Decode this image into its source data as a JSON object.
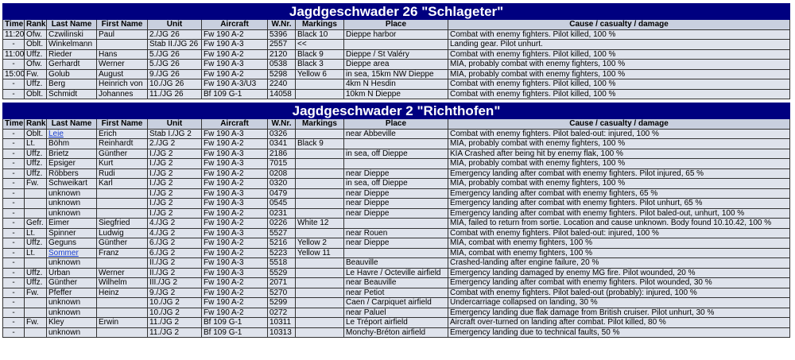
{
  "tables": [
    {
      "title": "Jagdgeschwader 26 \"Schlageter\"",
      "columns": [
        "Time",
        "Rank",
        "Last Name",
        "First Name",
        "Unit",
        "Aircraft",
        "W.Nr.",
        "Markings",
        "Place",
        "Cause / casualty / damage"
      ],
      "rows": [
        [
          "11:20",
          "Ofw.",
          "Czwilinski",
          "Paul",
          "2./JG 26",
          "Fw 190 A-2",
          "5396",
          "Black 10",
          "Dieppe harbor",
          "Combat with enemy fighters. Pilot killed, 100 %"
        ],
        [
          "-",
          "Oblt.",
          "Winkelmann",
          null,
          "Stab II./JG 26",
          "Fw 190 A-3",
          "2557",
          "<<",
          null,
          "Landing gear. Pilot unhurt."
        ],
        [
          "11:00",
          "Uffz.",
          "Rieder",
          "Hans",
          "5./JG 26",
          "Fw 190 A-2",
          "2120",
          "Black 9",
          "Dieppe / St Valéry",
          "Combat with enemy fighters. Pilot killed, 100 %"
        ],
        [
          "-",
          "Ofw.",
          "Gerhardt",
          "Werner",
          "5./JG 26",
          "Fw 190 A-3",
          "0538",
          "Black 3",
          "Dieppe area",
          "MIA, probably combat with enemy fighters, 100 %"
        ],
        [
          "15:00",
          "Fw.",
          "Golub",
          "August",
          "9./JG 26",
          "Fw 190 A-2",
          "5298",
          "Yellow 6",
          "in sea, 15km NW Dieppe",
          "MIA, probably combat with enemy fighters, 100 %"
        ],
        [
          "-",
          "Uffz.",
          "Berg",
          "Heinrich von",
          "10./JG 26",
          "Fw 190 A-3/U3",
          "2240",
          null,
          "4km N Hesdin",
          "Combat with enemy fighters. Pilot killed, 100 %"
        ],
        [
          "-",
          "Oblt.",
          "Schmidt",
          "Johannes",
          "11./JG 26",
          "Bf 109 G-1",
          "14058",
          null,
          "10km N Dieppe",
          "Combat with enemy fighters. Pilot killed, 100 %"
        ]
      ]
    },
    {
      "title": "Jagdgeschwader 2 \"Richthofen\"",
      "columns": [
        "Time",
        "Rank",
        "Last Name",
        "First Name",
        "Unit",
        "Aircraft",
        "W.Nr.",
        "Markings",
        "Place",
        "Cause / casualty / damage"
      ],
      "rows": [
        [
          "-",
          "Oblt.",
          {
            "text": "Leie",
            "link": true
          },
          "Erich",
          "Stab I./JG 2",
          "Fw 190 A-3",
          "0326",
          null,
          "near Abbeville",
          "Combat with enemy fighters. Pilot baled-out: injured, 100 %"
        ],
        [
          "-",
          "Lt.",
          "Böhm",
          "Reinhardt",
          "2./JG 2",
          "Fw 190 A-2",
          "0341",
          "Black 9",
          null,
          "MIA, probably combat with enemy fighters, 100 %"
        ],
        [
          "-",
          "Uffz.",
          "Brietz",
          "Günther",
          "I./JG 2",
          "Fw 190 A-3",
          "2186",
          null,
          "in sea, off Dieppe",
          "KIA Crashed after being hit by enemy flak, 100 %"
        ],
        [
          "-",
          "Uffz.",
          "Epsiger",
          "Kurt",
          "I./JG 2",
          "Fw 190 A-3",
          "7015",
          null,
          null,
          "MIA, probably combat with enemy fighters, 100 %"
        ],
        [
          "-",
          "Uffz.",
          "Röbbers",
          "Rudi",
          "I./JG 2",
          "Fw 190 A-2",
          "0208",
          null,
          "near Dieppe",
          "Emergency landing after combat with enemy fighters. Pilot injured, 65 %"
        ],
        [
          "-",
          "Fw.",
          "Schweikart",
          "Karl",
          "I./JG 2",
          "Fw 190 A-2",
          "0320",
          null,
          "in sea, off Dieppe",
          "MIA, probably combat with enemy fighters, 100 %"
        ],
        [
          "-",
          null,
          "unknown",
          null,
          "I./JG 2",
          "Fw 190 A-3",
          "0479",
          null,
          "near Dieppe",
          "Emergency landing after combat with enemy fighters, 65 %"
        ],
        [
          "-",
          null,
          "unknown",
          null,
          "I./JG 2",
          "Fw 190 A-3",
          "0545",
          null,
          "near Dieppe",
          "Emergency landing after combat with enemy fighters. Pilot unhurt, 65 %"
        ],
        [
          "-",
          null,
          "unknown",
          null,
          "I./JG 2",
          "Fw 190 A-2",
          "0231",
          null,
          "near Dieppe",
          "Emergency landing after combat with enemy fighters. Pilot baled-out, unhurt, 100 %"
        ],
        [
          "-",
          "Gefr.",
          "Eimer",
          "Siegfried",
          "4./JG 2",
          "Fw 190 A-2",
          "0226",
          "White 12",
          null,
          "MIA, failed to return from sortie. Location and cause unknown. Body found 10.10.42, 100 %"
        ],
        [
          "-",
          "Lt.",
          "Spinner",
          "Ludwig",
          "4./JG 2",
          "Fw 190 A-3",
          "5527",
          null,
          "near Rouen",
          "Combat with enemy fighters. Pilot baled-out: injured, 100 %"
        ],
        [
          "-",
          "Uffz.",
          "Geguns",
          "Günther",
          "6./JG 2",
          "Fw 190 A-2",
          "5216",
          "Yellow 2",
          "near Dieppe",
          "MIA, combat with enemy fighters, 100 %"
        ],
        [
          "-",
          "Lt.",
          {
            "text": "Sommer",
            "link": true
          },
          "Franz",
          "6./JG 2",
          "Fw 190 A-2",
          "5223",
          "Yellow 11",
          null,
          "MIA, combat with enemy fighters, 100 %"
        ],
        [
          "-",
          null,
          "unknown",
          null,
          "II./JG 2",
          "Fw 190 A-3",
          "5518",
          null,
          "Beauville",
          "Crashed-landing after engine failure, 20 %"
        ],
        [
          "-",
          "Uffz.",
          "Urban",
          "Werner",
          "II./JG 2",
          "Fw 190 A-3",
          "5529",
          null,
          "Le Havre / Octeville airfield",
          "Emergency landing damaged by enemy MG fire. Pilot wounded, 20 %"
        ],
        [
          "-",
          "Uffz.",
          "Günther",
          "Wilhelm",
          "III./JG 2",
          "Fw 190 A-2",
          "2071",
          null,
          "near Beauville",
          "Emergency landing after combat with enemy fighters. Pilot wounded, 30 %"
        ],
        [
          "-",
          "Fw.",
          "Pfeffer",
          "Heinz",
          "9./JG 2",
          "Fw 190 A-2",
          "5270",
          null,
          "near Petiot",
          "Combat with enemy fighters. Pilot baled-out (probably): injured, 100 %"
        ],
        [
          "-",
          null,
          "unknown",
          null,
          "10./JG 2",
          "Fw 190 A-2",
          "5299",
          null,
          "Caen / Carpiquet airfield",
          "Undercarriage collapsed on landing, 30 %"
        ],
        [
          "-",
          null,
          "unknown",
          null,
          "10./JG 2",
          "Fw 190 A-2",
          "0272",
          null,
          "near Paluel",
          "Emergency landing due flak damage from British cruiser. Pilot unhurt, 30 %"
        ],
        [
          "-",
          "Fw.",
          "Kley",
          "Erwin",
          "11./JG 2",
          "Bf 109 G-1",
          "10311",
          null,
          "Le Tréport airfield",
          "Aircraft over-turned on landing after combat. Pilot killed, 80 %"
        ],
        [
          "-",
          null,
          "unknown",
          null,
          "11./JG 2",
          "Bf 109 G-1",
          "10313",
          null,
          "Monchy-Bréton airfield",
          "Emergency landing due to technical faults, 50 %"
        ]
      ]
    }
  ]
}
